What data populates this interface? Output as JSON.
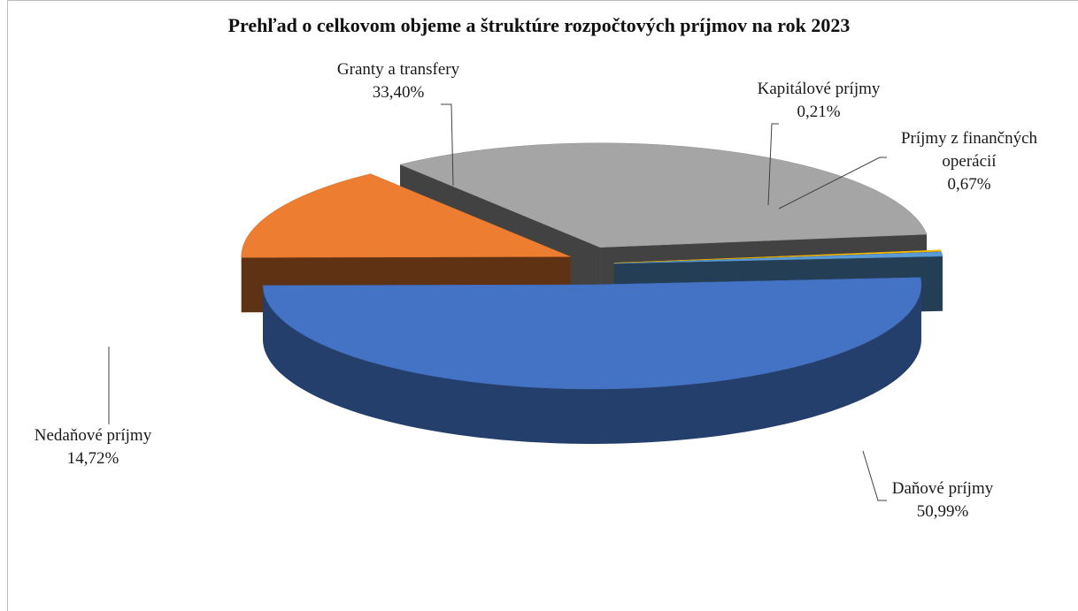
{
  "chart_data": {
    "type": "pie",
    "title": "Prehľad o celkovom objeme a štruktúre rozpočtových príjmov na rok 2023",
    "categories": [
      "Daňové príjmy",
      "Nedaňové príjmy",
      "Granty a transfery",
      "Kapitálové príjmy",
      "Príjmy z finančných operácií"
    ],
    "values": [
      50.99,
      14.72,
      33.4,
      0.21,
      0.67
    ],
    "value_labels": [
      "50,99%",
      "14,72%",
      "33,40%",
      "0,21%",
      "0,67%"
    ],
    "colors": [
      "#4472c4",
      "#ed7d31",
      "#a5a5a5",
      "#ffc000",
      "#5b9bd5"
    ]
  }
}
